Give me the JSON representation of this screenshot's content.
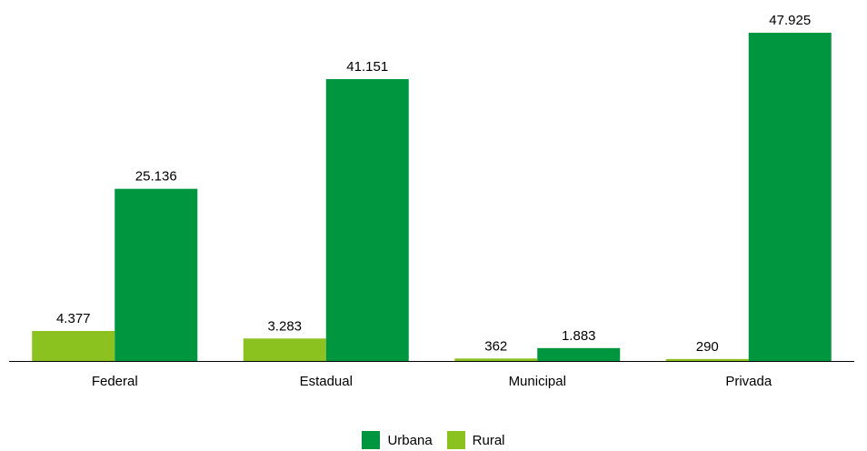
{
  "chart_data": {
    "type": "bar",
    "categories": [
      "Federal",
      "Estadual",
      "Municipal",
      "Privada"
    ],
    "series": [
      {
        "name": "Rural",
        "values": [
          4377,
          3283,
          362,
          290
        ],
        "labels": [
          "4.377",
          "3.283",
          "362",
          "290"
        ],
        "color": "#8cc21f"
      },
      {
        "name": "Urbana",
        "values": [
          25136,
          41151,
          1883,
          47925
        ],
        "labels": [
          "25.136",
          "41.151",
          "1.883",
          "47.925"
        ],
        "color": "#009640"
      }
    ],
    "legend_order": [
      "Urbana",
      "Rural"
    ],
    "legend_position": "bottom",
    "ylim": [
      0,
      50000
    ],
    "grid": false,
    "title": "",
    "xlabel": "",
    "ylabel": ""
  }
}
